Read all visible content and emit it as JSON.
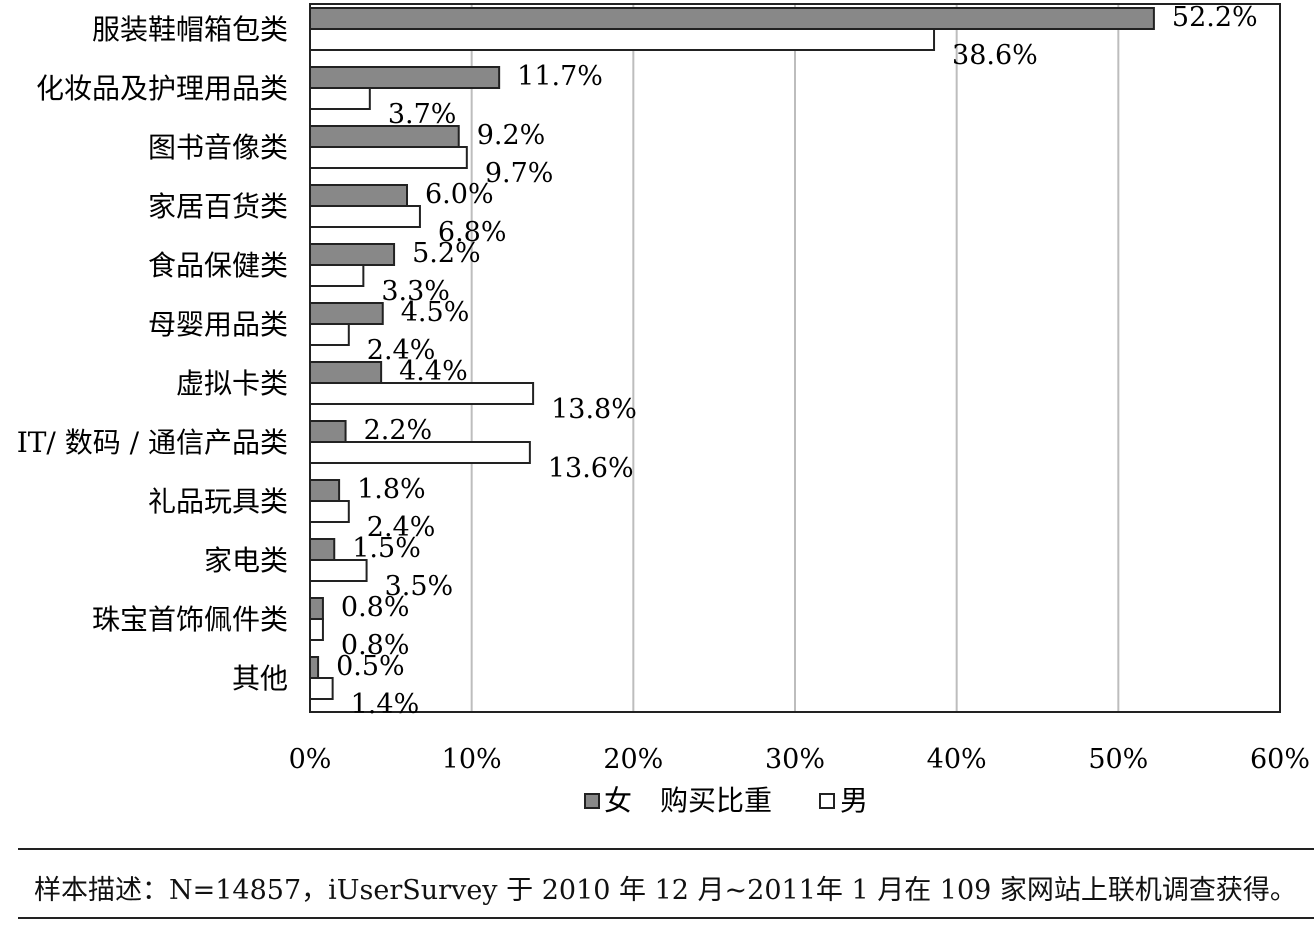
{
  "chart_data": {
    "type": "bar",
    "orientation": "horizontal",
    "categories": [
      "服装鞋帽箱包类",
      "化妆品及护理用品类",
      "图书音像类",
      "家居百货类",
      "食品保健类",
      "母婴用品类",
      "虚拟卡类",
      "IT/ 数码 / 通信产品类",
      "礼品玩具类",
      "家电类",
      "珠宝首饰佩件类",
      "其他"
    ],
    "series": [
      {
        "name": "女",
        "color": "#888888",
        "values": [
          52.2,
          11.7,
          9.2,
          6.0,
          5.2,
          4.5,
          4.4,
          2.2,
          1.8,
          1.5,
          0.8,
          0.5
        ],
        "labels": [
          "52.2%",
          "11.7%",
          "9.2%",
          "6.0%",
          "5.2%",
          "4.5%",
          "4.4%",
          "2.2%",
          "1.8%",
          "1.5%",
          "0.8%",
          "0.5%"
        ]
      },
      {
        "name": "男",
        "color": "#ffffff",
        "values": [
          38.6,
          3.7,
          9.7,
          6.8,
          3.3,
          2.4,
          13.8,
          13.6,
          2.4,
          3.5,
          0.8,
          1.4
        ],
        "labels": [
          "38.6%",
          "3.7%",
          "9.7%",
          "6.8%",
          "3.3%",
          "2.4%",
          "13.8%",
          "13.6%",
          "2.4%",
          "3.5%",
          "0.8%",
          "1.4%"
        ]
      }
    ],
    "xlim": [
      0,
      60
    ],
    "xticks": [
      0,
      10,
      20,
      30,
      40,
      50,
      60
    ],
    "xtick_labels": [
      "0%",
      "10%",
      "20%",
      "30%",
      "40%",
      "50%",
      "60%"
    ],
    "grid": "vertical",
    "legend_position": "bottom",
    "legend_middle_text": "购买比重"
  },
  "footnote": "样本描述：N=14857，iUserSurvey 于 2010 年 12 月~2011年 1 月在 109 家网站上联机调查获得。"
}
